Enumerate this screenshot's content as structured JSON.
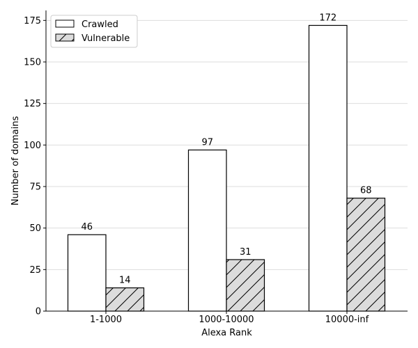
{
  "chart_data": {
    "type": "bar",
    "categories": [
      "1-1000",
      "1000-10000",
      "10000-inf"
    ],
    "series": [
      {
        "name": "Crawled",
        "values": [
          46,
          97,
          172
        ],
        "fill": "#ffffff",
        "hatch": false
      },
      {
        "name": "Vulnerable",
        "values": [
          14,
          31,
          68
        ],
        "fill": "#dcdcdc",
        "hatch": true
      }
    ],
    "title": "",
    "xlabel": "Alexa Rank",
    "ylabel": "Number of domains",
    "ylim": [
      0,
      181
    ],
    "yticks": [
      0,
      25,
      50,
      75,
      100,
      125,
      150,
      175
    ],
    "grid": "horizontal",
    "legend_position": "top-left"
  }
}
